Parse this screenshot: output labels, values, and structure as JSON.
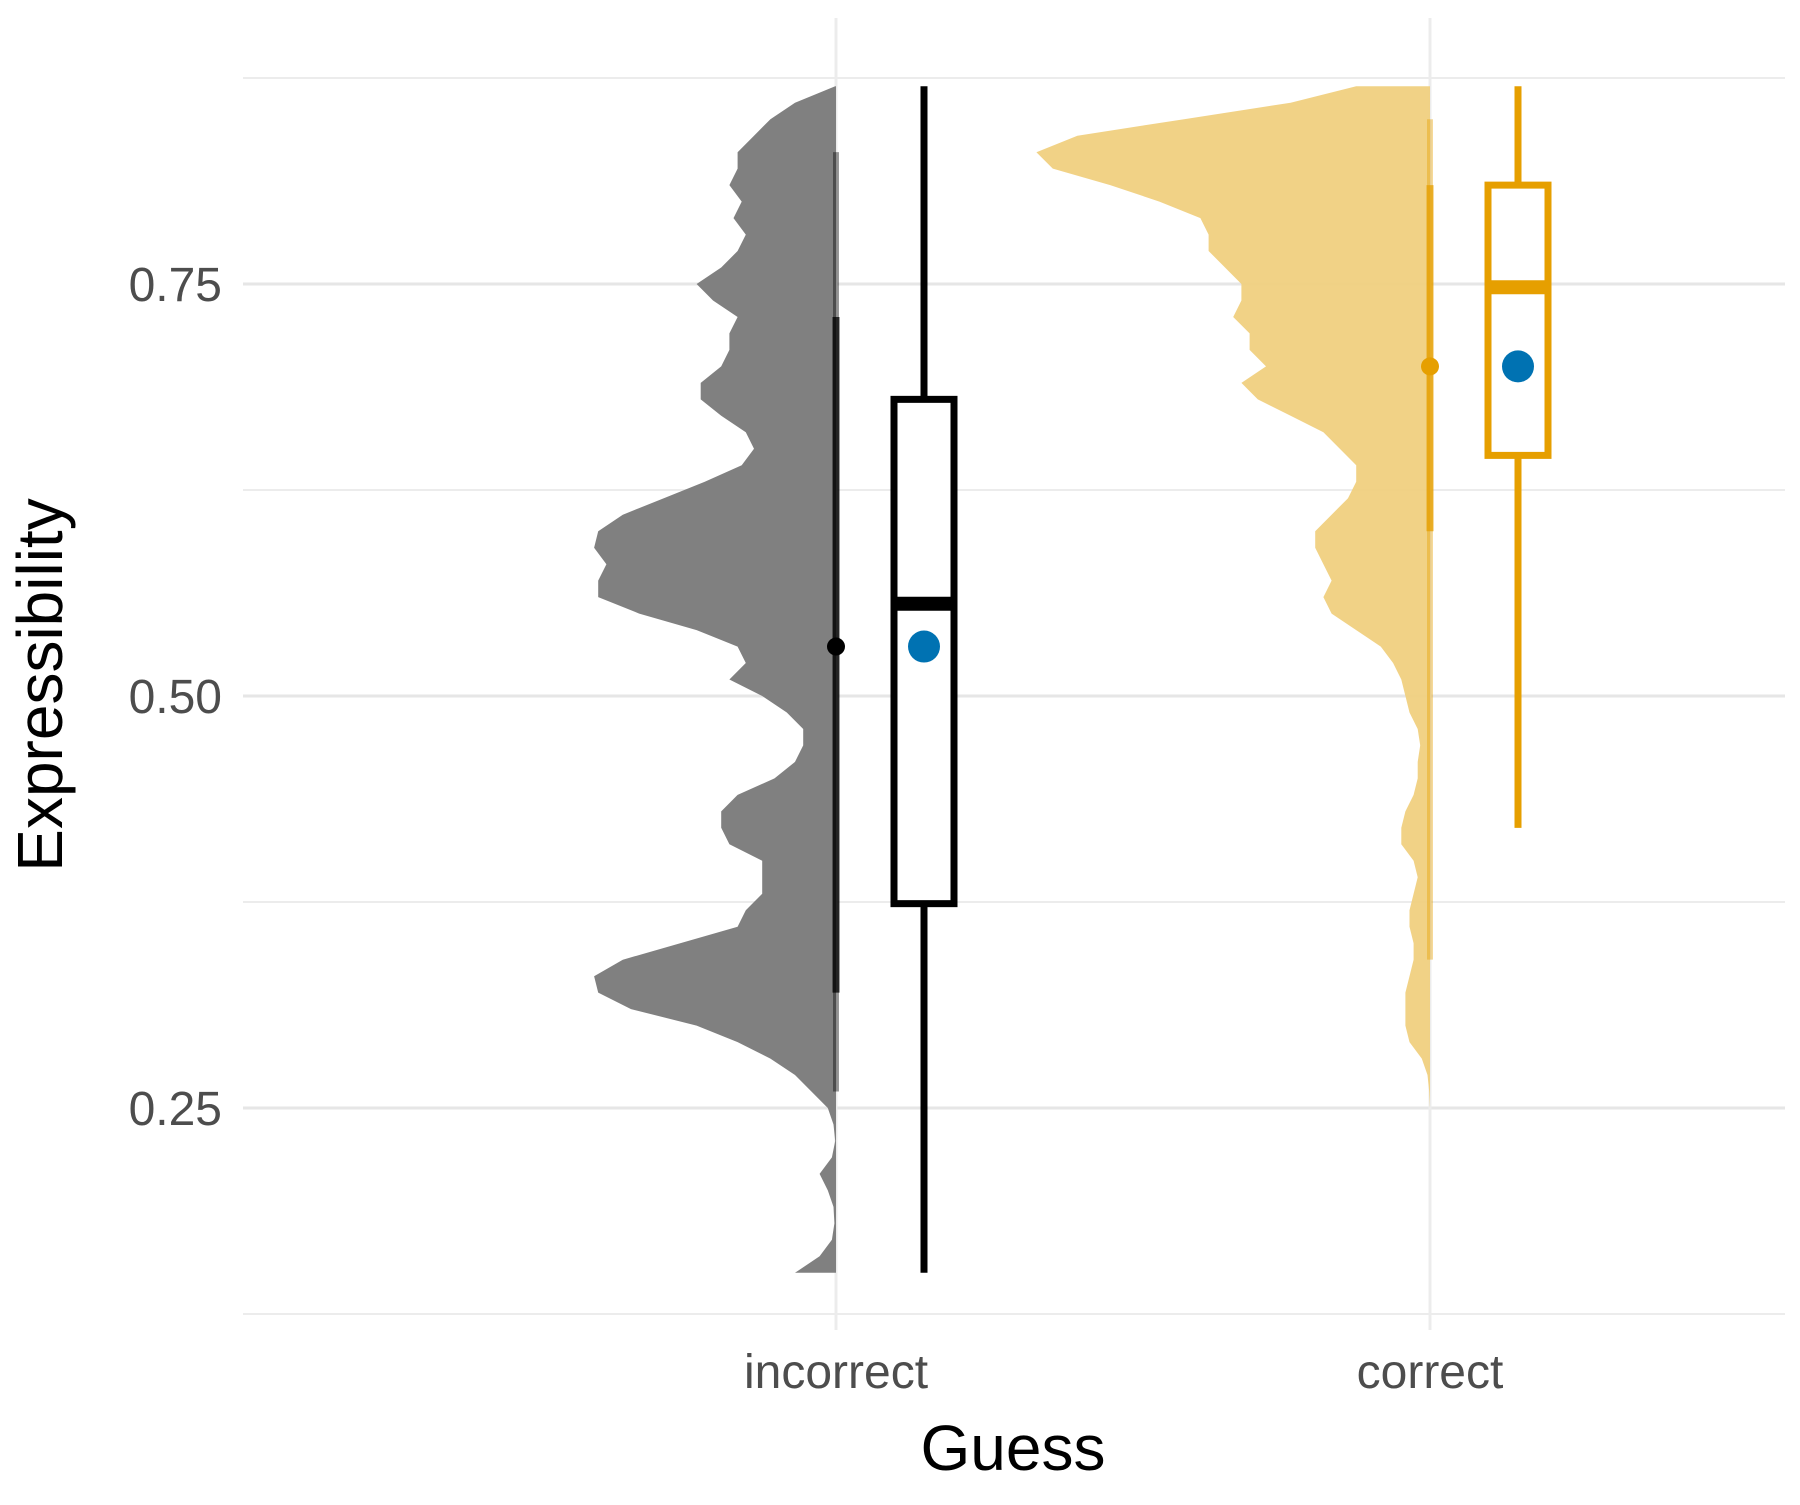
{
  "chart_data": {
    "type": "raincloud",
    "xlabel": "Guess",
    "ylabel": "Expressibility",
    "categories": [
      "incorrect",
      "correct"
    ],
    "yticks": [
      {
        "value": 0.25,
        "label": "0.25"
      },
      {
        "value": 0.5,
        "label": "0.50"
      },
      {
        "value": 0.75,
        "label": "0.75"
      }
    ],
    "ylim": [
      0.12,
      0.87
    ],
    "grid": true,
    "mean_point_color": "#0072B2",
    "groups": [
      {
        "category": "incorrect",
        "color": "#000000",
        "density_fill": "#808080",
        "boxplot": {
          "min": 0.15,
          "q1": 0.374,
          "median": 0.556,
          "q3": 0.68,
          "max": 0.87
        },
        "interval": {
          "mean": 0.53,
          "inner": [
            0.32,
            0.73
          ],
          "outer": [
            0.26,
            0.83
          ]
        },
        "mean": 0.53,
        "density": [
          [
            0.87,
            0.001
          ],
          [
            0.86,
            0.05
          ],
          [
            0.85,
            0.08
          ],
          [
            0.84,
            0.1
          ],
          [
            0.83,
            0.12
          ],
          [
            0.82,
            0.12
          ],
          [
            0.81,
            0.13
          ],
          [
            0.8,
            0.115
          ],
          [
            0.79,
            0.125
          ],
          [
            0.78,
            0.11
          ],
          [
            0.77,
            0.12
          ],
          [
            0.76,
            0.14
          ],
          [
            0.75,
            0.17
          ],
          [
            0.74,
            0.15
          ],
          [
            0.73,
            0.12
          ],
          [
            0.72,
            0.13
          ],
          [
            0.71,
            0.13
          ],
          [
            0.7,
            0.14
          ],
          [
            0.69,
            0.165
          ],
          [
            0.68,
            0.165
          ],
          [
            0.67,
            0.14
          ],
          [
            0.66,
            0.11
          ],
          [
            0.65,
            0.1
          ],
          [
            0.64,
            0.115
          ],
          [
            0.63,
            0.16
          ],
          [
            0.62,
            0.21
          ],
          [
            0.61,
            0.26
          ],
          [
            0.6,
            0.29
          ],
          [
            0.59,
            0.295
          ],
          [
            0.58,
            0.28
          ],
          [
            0.57,
            0.29
          ],
          [
            0.56,
            0.29
          ],
          [
            0.55,
            0.24
          ],
          [
            0.54,
            0.17
          ],
          [
            0.53,
            0.12
          ],
          [
            0.52,
            0.11
          ],
          [
            0.51,
            0.13
          ],
          [
            0.5,
            0.09
          ],
          [
            0.49,
            0.06
          ],
          [
            0.48,
            0.04
          ],
          [
            0.47,
            0.04
          ],
          [
            0.46,
            0.05
          ],
          [
            0.45,
            0.075
          ],
          [
            0.44,
            0.12
          ],
          [
            0.43,
            0.14
          ],
          [
            0.42,
            0.14
          ],
          [
            0.41,
            0.13
          ],
          [
            0.4,
            0.09
          ],
          [
            0.39,
            0.09
          ],
          [
            0.38,
            0.09
          ],
          [
            0.37,
            0.11
          ],
          [
            0.36,
            0.12
          ],
          [
            0.35,
            0.19
          ],
          [
            0.34,
            0.26
          ],
          [
            0.33,
            0.295
          ],
          [
            0.32,
            0.29
          ],
          [
            0.31,
            0.25
          ],
          [
            0.3,
            0.17
          ],
          [
            0.29,
            0.12
          ],
          [
            0.28,
            0.08
          ],
          [
            0.27,
            0.05
          ],
          [
            0.26,
            0.03
          ],
          [
            0.25,
            0.01
          ],
          [
            0.24,
            0.003
          ],
          [
            0.23,
            0.001
          ],
          [
            0.22,
            0.005
          ],
          [
            0.21,
            0.02
          ],
          [
            0.2,
            0.01
          ],
          [
            0.19,
            0.003
          ],
          [
            0.18,
            0.002
          ],
          [
            0.17,
            0.005
          ],
          [
            0.16,
            0.02
          ],
          [
            0.15,
            0.05
          ]
        ]
      },
      {
        "category": "correct",
        "color": "#E69F00",
        "density_fill": "#F0D080",
        "boxplot": {
          "min": 0.42,
          "q1": 0.646,
          "median": 0.748,
          "q3": 0.81,
          "max": 0.87
        },
        "interval": {
          "mean": 0.7,
          "inner": [
            0.6,
            0.81
          ],
          "outer": [
            0.34,
            0.85
          ]
        },
        "mean": 0.7,
        "density": [
          [
            0.87,
            0.09
          ],
          [
            0.86,
            0.17
          ],
          [
            0.85,
            0.3
          ],
          [
            0.84,
            0.43
          ],
          [
            0.83,
            0.48
          ],
          [
            0.82,
            0.46
          ],
          [
            0.81,
            0.39
          ],
          [
            0.8,
            0.33
          ],
          [
            0.79,
            0.28
          ],
          [
            0.78,
            0.27
          ],
          [
            0.77,
            0.27
          ],
          [
            0.76,
            0.25
          ],
          [
            0.75,
            0.23
          ],
          [
            0.74,
            0.23
          ],
          [
            0.73,
            0.24
          ],
          [
            0.72,
            0.22
          ],
          [
            0.71,
            0.22
          ],
          [
            0.7,
            0.2
          ],
          [
            0.69,
            0.23
          ],
          [
            0.68,
            0.21
          ],
          [
            0.67,
            0.17
          ],
          [
            0.66,
            0.13
          ],
          [
            0.65,
            0.11
          ],
          [
            0.64,
            0.09
          ],
          [
            0.63,
            0.09
          ],
          [
            0.62,
            0.1
          ],
          [
            0.61,
            0.12
          ],
          [
            0.6,
            0.14
          ],
          [
            0.59,
            0.14
          ],
          [
            0.58,
            0.13
          ],
          [
            0.57,
            0.12
          ],
          [
            0.56,
            0.13
          ],
          [
            0.55,
            0.12
          ],
          [
            0.54,
            0.09
          ],
          [
            0.53,
            0.06
          ],
          [
            0.52,
            0.045
          ],
          [
            0.51,
            0.035
          ],
          [
            0.5,
            0.03
          ],
          [
            0.49,
            0.025
          ],
          [
            0.48,
            0.015
          ],
          [
            0.47,
            0.012
          ],
          [
            0.46,
            0.015
          ],
          [
            0.45,
            0.015
          ],
          [
            0.44,
            0.02
          ],
          [
            0.43,
            0.03
          ],
          [
            0.42,
            0.035
          ],
          [
            0.41,
            0.035
          ],
          [
            0.4,
            0.02
          ],
          [
            0.39,
            0.015
          ],
          [
            0.38,
            0.02
          ],
          [
            0.37,
            0.025
          ],
          [
            0.36,
            0.025
          ],
          [
            0.35,
            0.02
          ],
          [
            0.34,
            0.02
          ],
          [
            0.33,
            0.025
          ],
          [
            0.32,
            0.03
          ],
          [
            0.31,
            0.03
          ],
          [
            0.3,
            0.03
          ],
          [
            0.29,
            0.025
          ],
          [
            0.28,
            0.01
          ],
          [
            0.27,
            0.003
          ],
          [
            0.26,
            0.001
          ],
          [
            0.25,
            0.0
          ]
        ]
      }
    ]
  }
}
